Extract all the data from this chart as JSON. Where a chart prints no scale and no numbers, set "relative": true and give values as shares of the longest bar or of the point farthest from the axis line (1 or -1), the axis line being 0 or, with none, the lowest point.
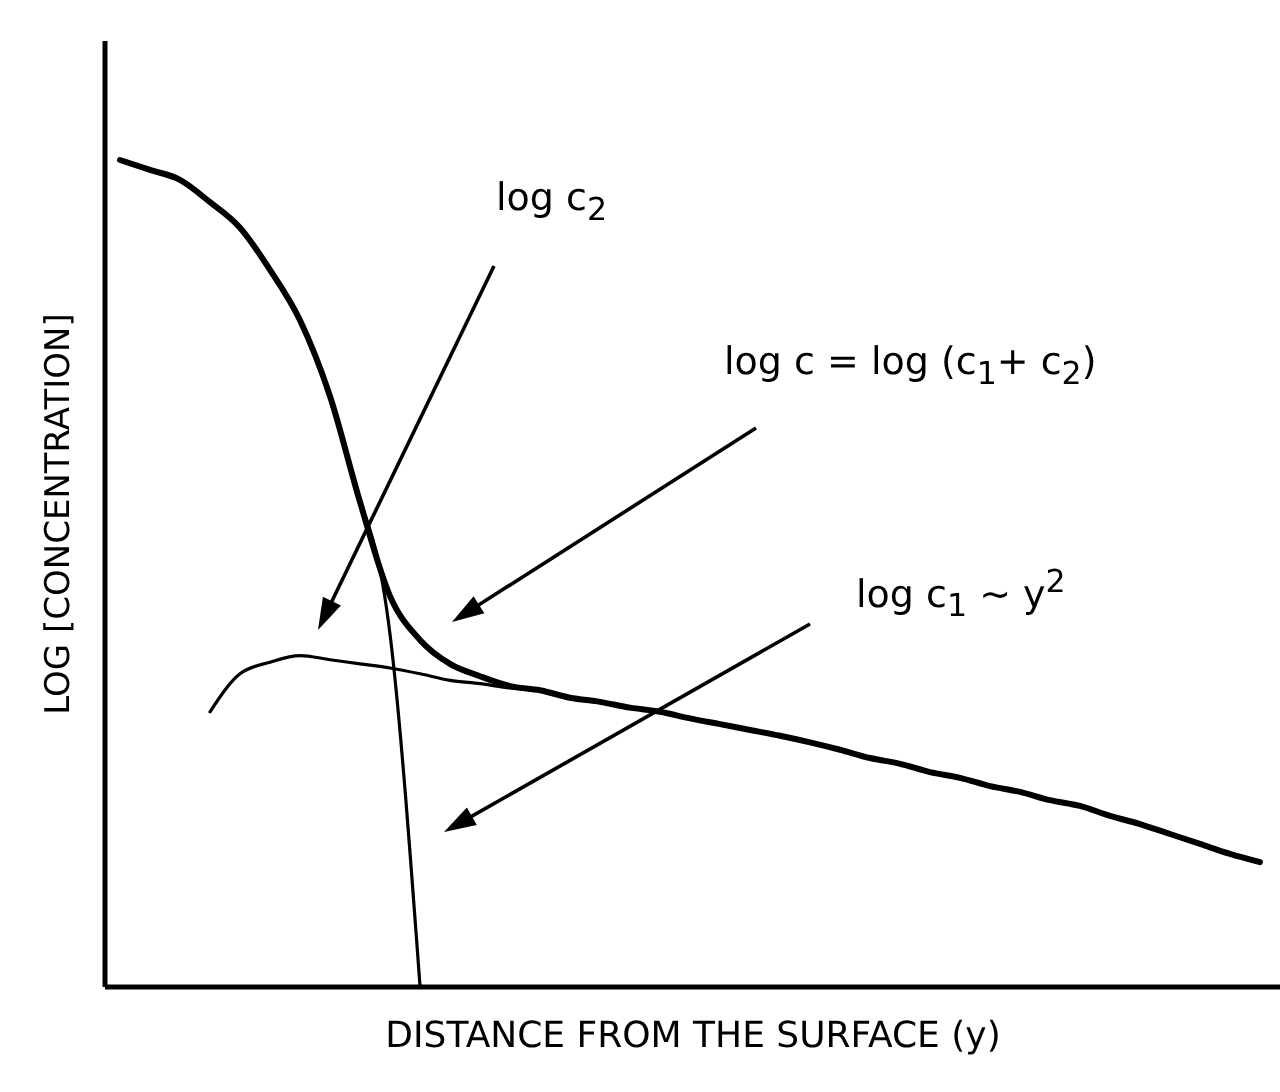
{
  "chart_data": {
    "type": "line",
    "relative": true,
    "xlabel": "DISTANCE  FROM  THE  SURFACE  (y)",
    "ylabel": "LOG [CONCENTRATION]",
    "annotations": [
      "log c = log (c$_{1}$+ c$_{2}$)",
      "log c$_{1}$ ~ y$^{2}$",
      "log c$_{2}$"
    ],
    "grid": false,
    "marker": "none",
    "line_style": "solid",
    "categories": [
      null,
      null,
      null,
      null,
      null,
      null,
      null,
      null,
      null,
      null,
      null,
      null,
      null,
      null,
      null,
      null,
      null,
      null,
      null,
      null,
      null,
      null,
      null,
      null,
      null,
      null,
      null,
      null,
      null,
      null,
      null,
      null,
      null,
      null,
      null,
      null,
      null,
      null,
      null
    ],
    "series": [
      {
        "color": "#000000",
        "values": [
          1.0,
          0.988,
          0.976,
          0.949,
          0.918,
          0.867,
          0.806,
          0.714,
          0.586,
          0.472,
          0.419,
          0.39,
          0.375,
          0.363,
          0.358,
          0.349,
          0.344,
          0.337,
          0.332,
          0.324,
          0.317,
          0.31,
          0.303,
          0.295,
          0.286,
          0.276,
          0.269,
          0.259,
          0.252,
          0.242,
          0.235,
          0.225,
          0.218,
          0.206,
          0.196,
          0.184,
          0.172,
          0.16,
          0.15
        ]
      },
      {
        "color": "#000000",
        "values": [
          null,
          null,
          null,
          0.332,
          0.378,
          0.392,
          0.4,
          0.395,
          0.39,
          0.385,
          0.378,
          0.37,
          0.366,
          0.361,
          0.358,
          null,
          null,
          null,
          null,
          null,
          null,
          null,
          null,
          null,
          null,
          null,
          null,
          null,
          null,
          null,
          null,
          null,
          null,
          null,
          null,
          null,
          null,
          null,
          null
        ]
      },
      {
        "color": "#000000",
        "values": [
          null,
          null,
          null,
          null,
          null,
          null,
          null,
          null,
          0.586,
          0.426,
          0.0,
          null,
          null,
          null,
          null,
          null,
          null,
          null,
          null,
          null,
          null,
          null,
          null,
          null,
          null,
          null,
          null,
          null,
          null,
          null,
          null,
          null,
          null,
          null,
          null,
          null,
          null,
          null,
          null
        ]
      }
    ]
  }
}
